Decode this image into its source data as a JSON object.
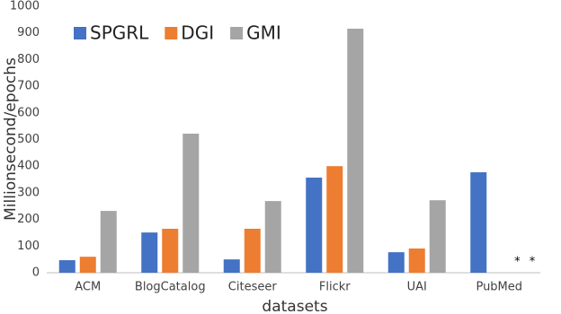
{
  "chart_data": {
    "type": "bar",
    "categories": [
      "ACM",
      "BlogCatalog",
      "Citeseer",
      "Flickr",
      "UAI",
      "PubMed"
    ],
    "series": [
      {
        "name": "SPGRL",
        "color": "#4472c4",
        "values": [
          47,
          151,
          50,
          357,
          77,
          377
        ]
      },
      {
        "name": "DGI",
        "color": "#ed7d31",
        "values": [
          60,
          165,
          165,
          400,
          91,
          null
        ]
      },
      {
        "name": "GMI",
        "color": "#a5a5a5",
        "values": [
          232,
          522,
          269,
          916,
          272,
          null
        ]
      }
    ],
    "annotation": "* *",
    "xlabel": "datasets",
    "ylabel": "Millionsecond/epochs",
    "ylim": [
      0,
      1000
    ],
    "yticks": [
      0,
      100,
      200,
      300,
      400,
      500,
      600,
      700,
      800,
      900,
      1000
    ],
    "grid": false,
    "legend": "top-left"
  }
}
